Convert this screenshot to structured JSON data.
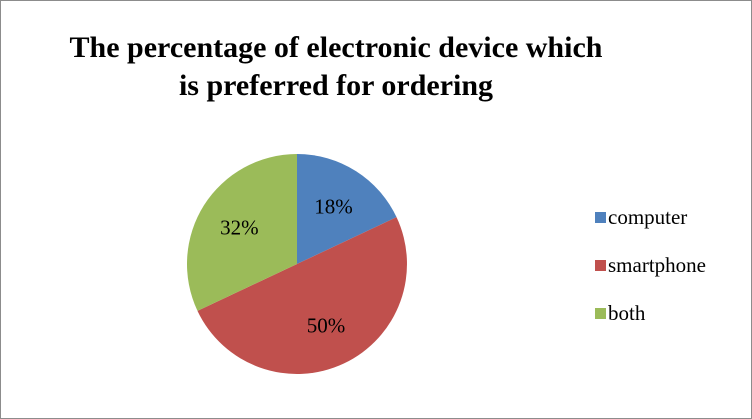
{
  "chart_data": {
    "type": "pie",
    "title": "The percentage of electronic device which is preferred for ordering",
    "title_lines": [
      "The percentage of electronic device which",
      "is preferred for ordering"
    ],
    "slices": [
      {
        "label": "computer",
        "value": 18,
        "display": "18%",
        "color": "#4f81bd"
      },
      {
        "label": "smartphone",
        "value": 50,
        "display": "50%",
        "color": "#c0504d"
      },
      {
        "label": "both",
        "value": 32,
        "display": "32%",
        "color": "#9bbb59"
      }
    ],
    "legend_position": "right"
  }
}
